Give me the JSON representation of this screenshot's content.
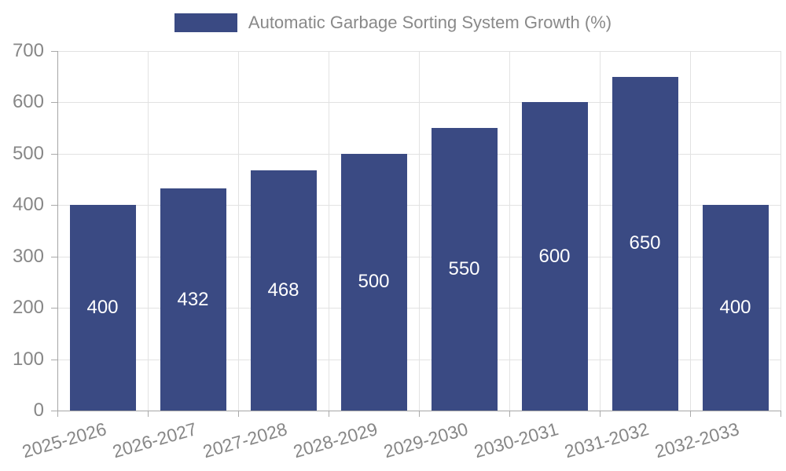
{
  "legend": {
    "label": "Automatic Garbage Sorting System Growth (%)"
  },
  "chart_data": {
    "type": "bar",
    "title": "Automatic Garbage Sorting System Growth (%)",
    "series_name": "Automatic Garbage Sorting System Growth (%)",
    "categories": [
      "2025-2026",
      "2026-2027",
      "2027-2028",
      "2028-2029",
      "2029-2030",
      "2030-2031",
      "2031-2032",
      "2032-2033"
    ],
    "values": [
      400,
      432,
      468,
      500,
      550,
      600,
      650,
      400
    ],
    "value_labels": [
      "400",
      "432",
      "468",
      "500",
      "550",
      "600",
      "650",
      "400"
    ],
    "xlabel": "",
    "ylabel": "",
    "ylim": [
      0,
      700
    ],
    "ytick_step": 100,
    "ytick_labels": [
      "0",
      "100",
      "200",
      "300",
      "400",
      "500",
      "600",
      "700"
    ],
    "grid": true,
    "legend_position": "top",
    "bar_color": "#3a4a83",
    "value_label_color": "#ffffff",
    "axis_text_color": "#878787",
    "gridline_color": "#e2e2e2",
    "axis_line_color": "#a6a6a6"
  }
}
